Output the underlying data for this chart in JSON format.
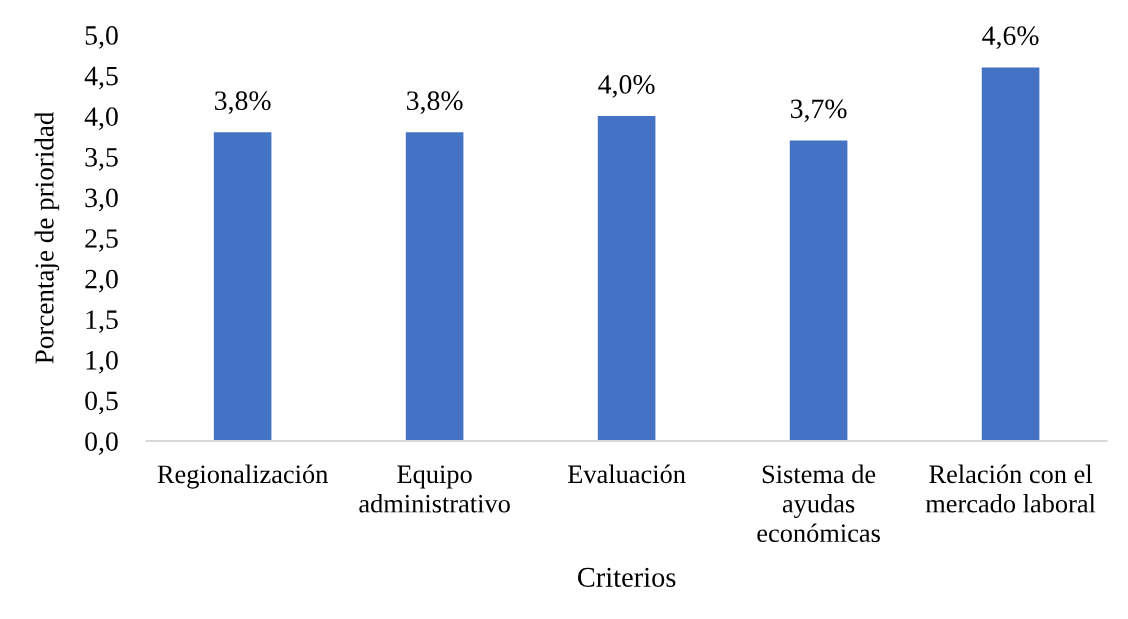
{
  "chart_data": {
    "type": "bar",
    "xlabel": "Criterios",
    "ylabel": "Porcentaje de prioridad",
    "categories": [
      "Regionalización",
      "Equipo\nadministrativo",
      "Evaluación",
      "Sistema de\nayudas\neconómicas",
      "Relación con el\nmercado laboral"
    ],
    "values": [
      3.8,
      3.8,
      4.0,
      3.7,
      4.6
    ],
    "color": "#4472c4",
    "value_labels": [
      "3,8%",
      "3,8%",
      "4,0%",
      "3,7%",
      "4,6%"
    ],
    "ylim": [
      0,
      5
    ],
    "yticks": [
      {
        "value": 0,
        "label": "0,0"
      },
      {
        "value": 0.5,
        "label": "0,5"
      },
      {
        "value": 1,
        "label": "1,0"
      },
      {
        "value": 1.5,
        "label": "1,5"
      },
      {
        "value": 2,
        "label": "2,0"
      },
      {
        "value": 2.5,
        "label": "2,5"
      },
      {
        "value": 3,
        "label": "3,0"
      },
      {
        "value": 3.5,
        "label": "3,5"
      },
      {
        "value": 4,
        "label": "4,0"
      },
      {
        "value": 4.5,
        "label": "4,5"
      },
      {
        "value": 5,
        "label": "5,0"
      }
    ]
  }
}
